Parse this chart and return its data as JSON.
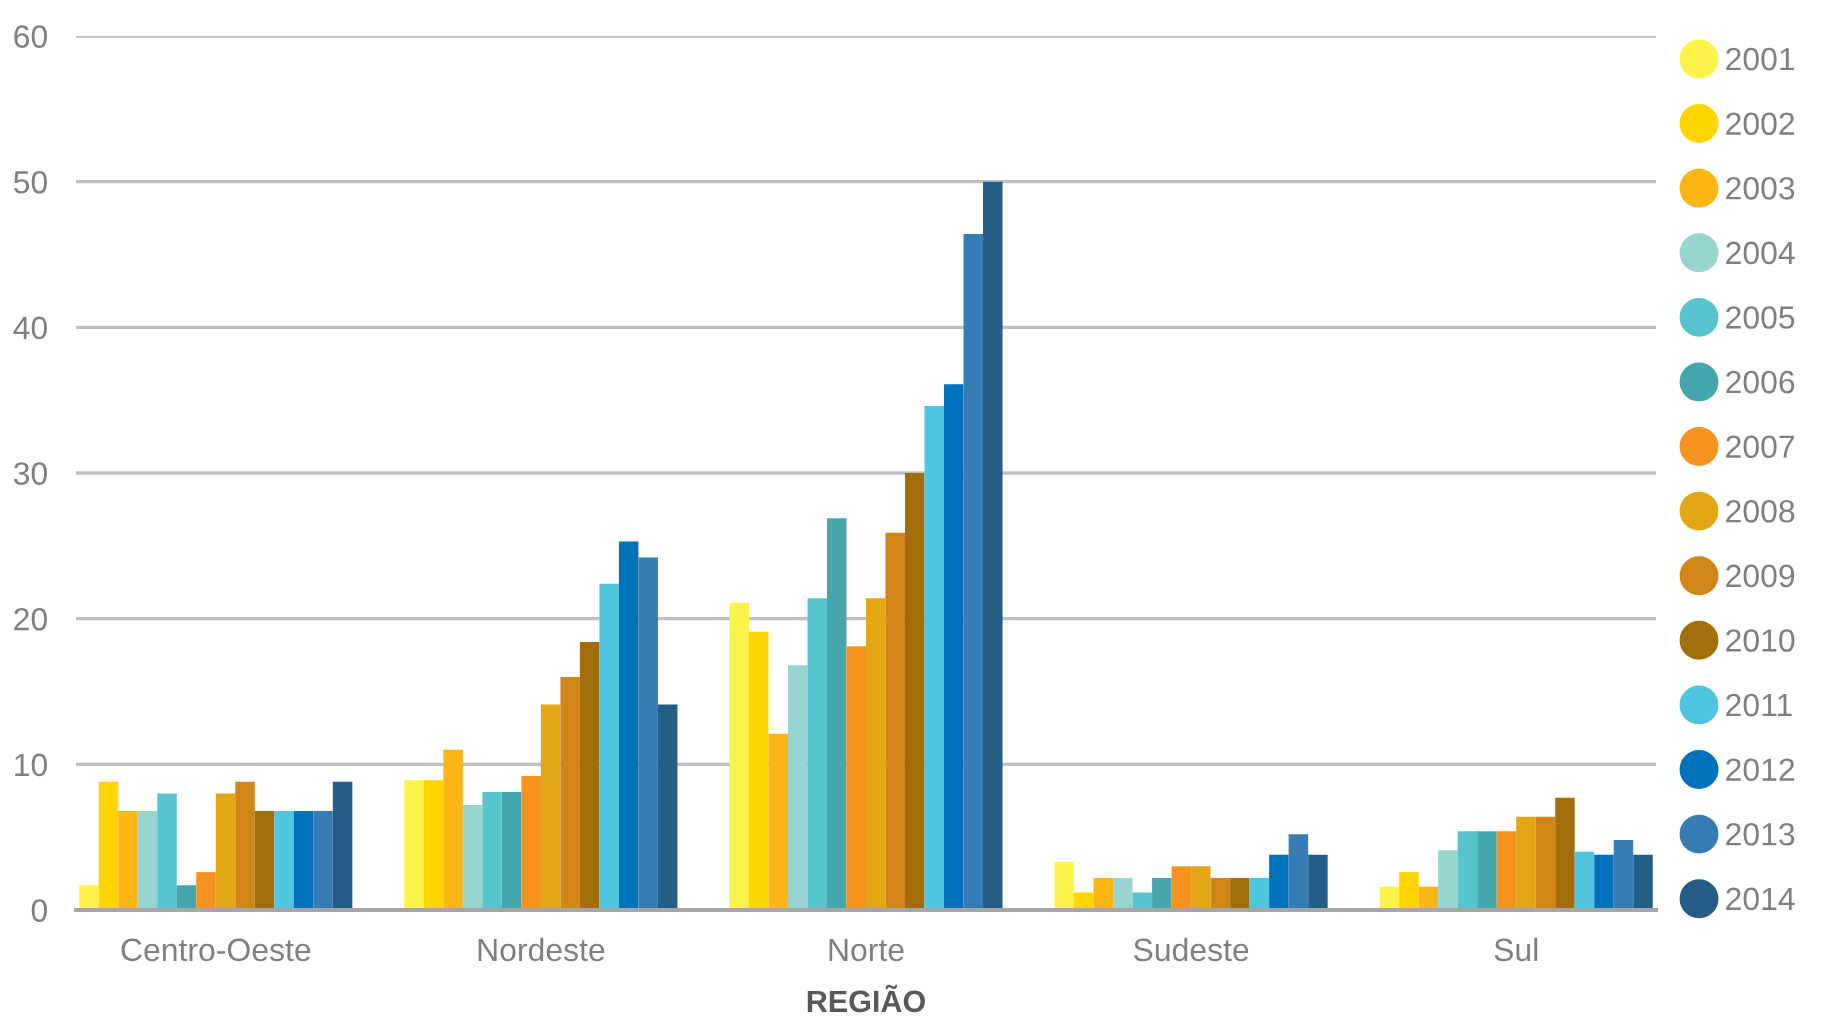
{
  "chart_data": {
    "type": "bar",
    "xlabel": "REGIÃO",
    "categories": [
      "Centro-Oeste",
      "Nordeste",
      "Norte",
      "Sudeste",
      "Sul"
    ],
    "series": [
      {
        "name": "2001",
        "color": "#fff24a",
        "values": [
          1.7,
          8.9,
          21.1,
          3.3,
          1.6
        ]
      },
      {
        "name": "2002",
        "color": "#ffd400",
        "values": [
          8.8,
          8.9,
          19.1,
          1.2,
          2.6
        ]
      },
      {
        "name": "2003",
        "color": "#fbb616",
        "values": [
          6.8,
          11.0,
          12.1,
          2.2,
          1.6
        ]
      },
      {
        "name": "2004",
        "color": "#98d4d0",
        "values": [
          6.8,
          7.2,
          16.8,
          2.2,
          4.1
        ]
      },
      {
        "name": "2005",
        "color": "#58c4cd",
        "values": [
          8.0,
          8.1,
          21.4,
          1.2,
          5.4
        ]
      },
      {
        "name": "2006",
        "color": "#46a6ad",
        "values": [
          1.7,
          8.1,
          26.9,
          2.2,
          5.4
        ]
      },
      {
        "name": "2007",
        "color": "#f6921e",
        "values": [
          2.6,
          9.2,
          18.1,
          3.0,
          5.4
        ]
      },
      {
        "name": "2008",
        "color": "#e3a614",
        "values": [
          8.0,
          14.1,
          21.4,
          3.0,
          6.4
        ]
      },
      {
        "name": "2009",
        "color": "#cf8616",
        "values": [
          8.8,
          16.0,
          25.9,
          2.2,
          6.4
        ]
      },
      {
        "name": "2010",
        "color": "#a26e0a",
        "values": [
          6.8,
          18.4,
          30.0,
          2.2,
          7.7
        ]
      },
      {
        "name": "2011",
        "color": "#50c5df",
        "values": [
          6.8,
          22.4,
          34.6,
          2.2,
          4.0
        ]
      },
      {
        "name": "2012",
        "color": "#0071bb",
        "values": [
          6.8,
          25.3,
          36.1,
          3.8,
          3.8
        ]
      },
      {
        "name": "2013",
        "color": "#367db5",
        "values": [
          6.8,
          24.2,
          46.4,
          5.2,
          4.8
        ]
      },
      {
        "name": "2014",
        "color": "#255d87",
        "values": [
          8.8,
          14.1,
          50.0,
          3.8,
          3.8
        ]
      }
    ],
    "ylim": [
      0,
      60
    ],
    "yticks": [
      0,
      10,
      20,
      30,
      40,
      50,
      60
    ],
    "grid": "y",
    "legend": "right",
    "marker": "circle"
  }
}
